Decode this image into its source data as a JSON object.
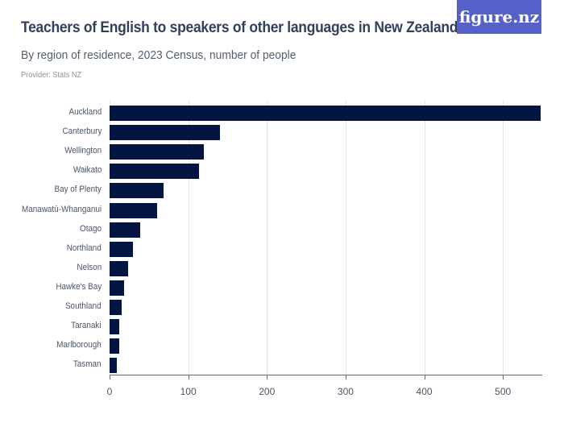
{
  "header": {
    "title": "Teachers of English to speakers of other languages in New Zealand",
    "subtitle": "By region of residence, 2023 Census, number of people",
    "provider": "Provider: Stats NZ",
    "logo_text": "figure.nz"
  },
  "colors": {
    "bar": "#051542",
    "logo_bg": "#5560c9",
    "title": "#33405c"
  },
  "chart_data": {
    "type": "bar",
    "orientation": "horizontal",
    "title": "Teachers of English to speakers of other languages in New Zealand",
    "subtitle": "By region of residence, 2023 Census, number of people",
    "xlabel": "",
    "ylabel": "",
    "xlim": [
      0,
      550
    ],
    "xticks": [
      0,
      100,
      200,
      300,
      400,
      500
    ],
    "grid": true,
    "legend": null,
    "categories": [
      "Auckland",
      "Canterbury",
      "Wellington",
      "Waikato",
      "Bay of Plenty",
      "Manawatū-Whanganui",
      "Otago",
      "Northland",
      "Nelson",
      "Hawke's Bay",
      "Southland",
      "Taranaki",
      "Marlborough",
      "Tasman"
    ],
    "values": [
      548,
      140,
      120,
      114,
      69,
      60,
      39,
      30,
      24,
      18,
      15,
      12,
      12,
      9
    ]
  }
}
